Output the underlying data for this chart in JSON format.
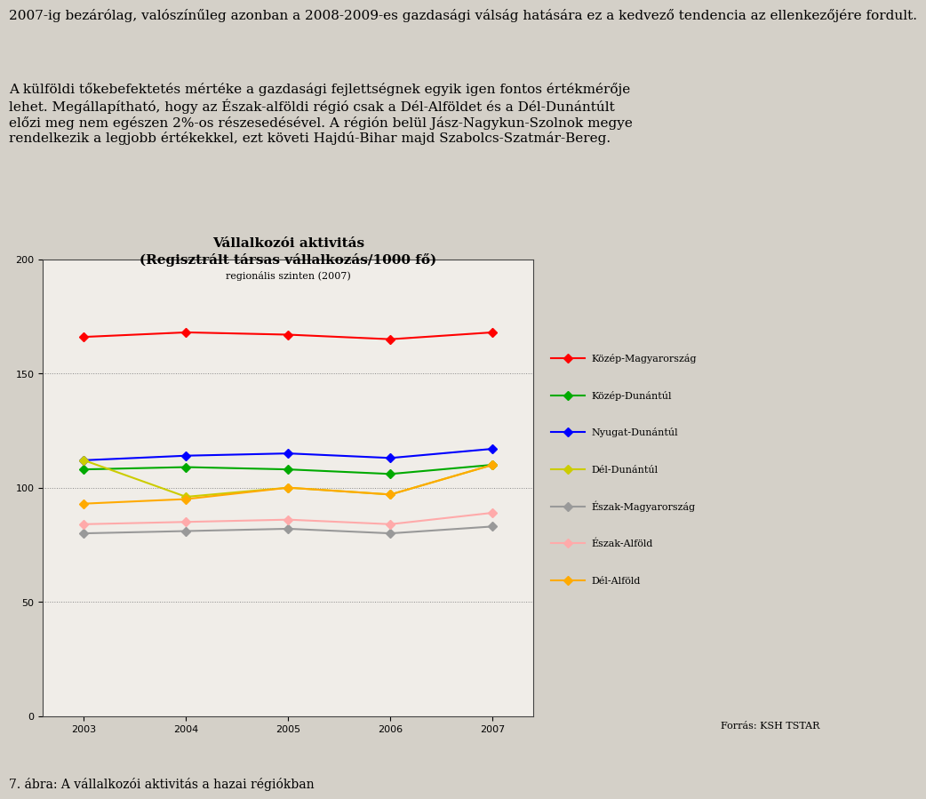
{
  "title_line1": "Vállalkozói aktivitás",
  "title_line2": "(Regisztrált társas vállalkozás/1000 fő)",
  "title_line3": "regionális szinten (2007)",
  "source": "Forrás: KSH TSTAR",
  "caption": "7. ábra: A vállalkozói aktivitás a hazai régiókban",
  "para1": "2007-ig bezárólag, valószínűleg azonban a 2008-2009-es gazdasági válság hatására ez a kedvező tendencia az ellenkezőjére fordult.",
  "para2": "A külföldi tőkebefektetés mértéke a gazdasági fejlettségnek egyik igen fontos értékmérője lehet. Megállapítható, hogy az Észak-alföldi régió csak a Dél-Alföldet és a Dél-Dunántúlt előzi meg nem egészen 2%-os részesedésével. A régión belül Jász-Nagykun-Szolnok megye rendelkezik a legjobb értékekkel, ezt követi Hajdú-Bihar majd Szabolcs-Szatmár-Bereg.",
  "years": [
    2003,
    2004,
    2005,
    2006,
    2007
  ],
  "series": [
    {
      "name": "Közép-Magyarország",
      "color": "#ff0000",
      "values": [
        166,
        168,
        167,
        165,
        168
      ]
    },
    {
      "name": "Közép-Dunántúl",
      "color": "#00aa00",
      "values": [
        108,
        109,
        108,
        106,
        110
      ]
    },
    {
      "name": "Nyugat-Dunántúl",
      "color": "#0000ff",
      "values": [
        112,
        114,
        115,
        113,
        117
      ]
    },
    {
      "name": "Dél-Dunántúl",
      "color": "#cccc00",
      "values": [
        112,
        96,
        100,
        97,
        110
      ]
    },
    {
      "name": "Észak-Magyarország",
      "color": "#999999",
      "values": [
        80,
        81,
        82,
        80,
        83
      ]
    },
    {
      "name": "Észak-Alföld",
      "color": "#ffaaaa",
      "values": [
        84,
        85,
        86,
        84,
        89
      ]
    },
    {
      "name": "Dél-Alföld",
      "color": "#ffaa00",
      "values": [
        93,
        95,
        100,
        97,
        110
      ]
    }
  ],
  "ylim": [
    0,
    200
  ],
  "yticks": [
    0,
    50,
    100,
    150,
    200
  ],
  "bg_color": "#d4d0c8",
  "plot_bg_color": "#e8e4dc",
  "chart_inner_bg": "#f0ede8",
  "grid_color": "#888888",
  "marker_size": 5,
  "linewidth": 1.5,
  "title_fontsize": 11,
  "subtitle_fontsize": 8,
  "tick_fontsize": 8,
  "legend_fontsize": 8,
  "caption_fontsize": 10,
  "text_fontsize": 11
}
